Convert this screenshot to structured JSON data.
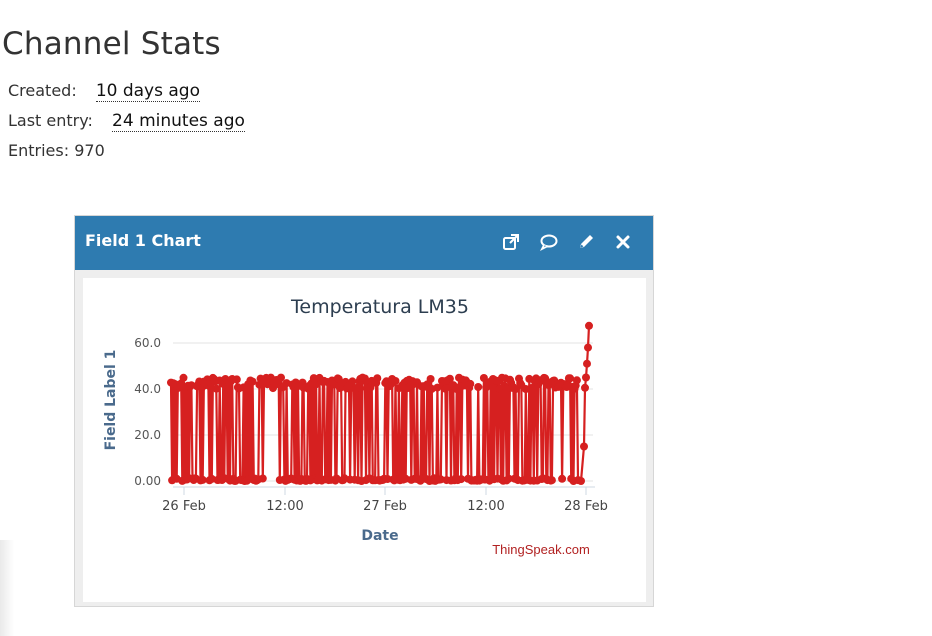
{
  "page": {
    "title": "Channel Stats"
  },
  "stats": {
    "created_label": "Created:",
    "created_value": "10 days ago",
    "last_entry_label": "Last entry:",
    "last_entry_value": "24 minutes ago",
    "entries_label": "Entries: 970"
  },
  "widget": {
    "title": "Field 1 Chart",
    "icons": [
      "external-link-icon",
      "comment-icon",
      "pencil-icon",
      "close-icon"
    ],
    "header_color": "#2e7bb0"
  },
  "chart_data": {
    "type": "line",
    "title": "Temperatura LM35",
    "xlabel": "Date",
    "ylabel": "Field Label 1",
    "credit": "ThingSpeak.com",
    "x_ticks": [
      "26 Feb",
      "12:00",
      "27 Feb",
      "12:00",
      "28 Feb"
    ],
    "y_ticks": [
      "0.00",
      "20.0",
      "40.0",
      "60.0"
    ],
    "ylim": [
      0,
      60
    ],
    "grid": true,
    "series": [
      {
        "color": "#d62020",
        "pattern": "Readings alternate between about 0 and about 40-45 from 26 Feb to 28 Feb, then rise to about 67 at the end",
        "low": 0,
        "high_min": 40,
        "high_max": 45,
        "final_values": [
          40.5,
          45.0,
          51.0,
          58.0,
          67.5
        ]
      }
    ],
    "x_start": "25 Feb 22:00",
    "x_end": "28 Feb 00:00"
  }
}
